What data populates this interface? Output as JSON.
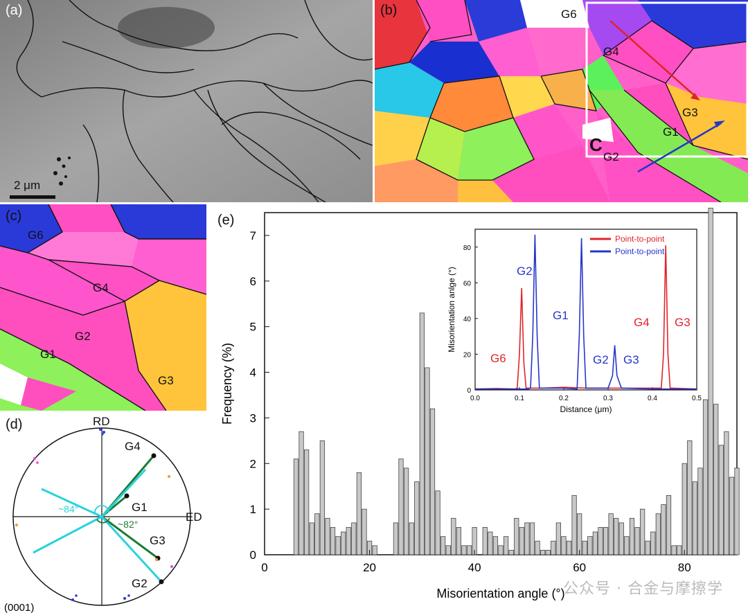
{
  "panels": {
    "a": {
      "label": "(a)",
      "scalebar": "2 μm"
    },
    "b": {
      "label": "(b)",
      "box_label": "C",
      "grains": [
        "G6",
        "G4",
        "G3",
        "G1",
        "G2"
      ]
    },
    "c": {
      "label": "(c)",
      "grains": [
        "G6",
        "G4",
        "G2",
        "G1",
        "G3"
      ]
    },
    "d": {
      "label": "(d)",
      "rd": "RD",
      "ed": "ED",
      "plane": "(0001)",
      "grains": [
        "G4",
        "G1",
        "G3",
        "G2"
      ],
      "angle1": "~84°",
      "angle2": "~82°"
    },
    "e": {
      "label": "(e)"
    }
  },
  "colors": {
    "hist_fill": "#c8c8c8",
    "hist_stroke": "#444444",
    "red_line": "#e0242a",
    "blue_line": "#2736c8",
    "cyan": "#27d3dd",
    "green_dark": "#1f7a34"
  },
  "chart_data": [
    {
      "type": "bar",
      "title": "",
      "xlabel": "Misorientation angle (°)",
      "ylabel": "Frequency (%)",
      "xlim": [
        0,
        90
      ],
      "ylim": [
        0,
        7.5
      ],
      "xticks": [
        0,
        20,
        40,
        60,
        80
      ],
      "yticks": [
        0,
        1,
        2,
        3,
        4,
        5,
        6,
        7
      ],
      "bin_width": 0.85,
      "x": [
        6,
        7,
        8,
        9,
        10,
        11,
        12,
        13,
        14,
        15,
        16,
        17,
        18,
        19,
        20,
        21,
        25,
        26,
        27,
        28,
        29,
        30,
        31,
        32,
        33,
        34,
        35,
        36,
        37,
        38,
        39,
        40,
        42,
        43,
        44,
        45,
        46,
        47,
        48,
        49,
        50,
        51,
        52,
        53,
        54,
        55,
        56,
        57,
        58,
        59,
        60,
        61,
        62,
        63,
        64,
        65,
        66,
        67,
        68,
        69,
        70,
        71,
        72,
        73,
        74,
        75,
        76,
        77,
        78,
        79,
        80,
        81,
        82,
        83,
        84,
        85,
        86,
        87,
        88,
        89,
        90
      ],
      "values": [
        2.1,
        2.7,
        2.3,
        0.7,
        0.9,
        2.5,
        0.8,
        0.6,
        0.4,
        0.5,
        0.6,
        0.7,
        1.8,
        1.0,
        0.3,
        0.2,
        0.7,
        2.1,
        1.9,
        0.7,
        1.6,
        5.3,
        4.1,
        3.2,
        1.4,
        0.4,
        0.2,
        0.8,
        0.6,
        0.2,
        0.2,
        0.6,
        0.6,
        0.5,
        0.4,
        0.2,
        0.4,
        0.1,
        0.8,
        0.6,
        0.7,
        0.7,
        0.3,
        0.1,
        0.1,
        0.3,
        0.7,
        0.4,
        0.3,
        1.3,
        0.9,
        0.3,
        0.4,
        0.5,
        0.6,
        0.6,
        0.9,
        0.8,
        0.7,
        0.4,
        0.8,
        0.6,
        1.0,
        0.3,
        0.5,
        0.9,
        1.1,
        1.3,
        0.2,
        0.2,
        2.0,
        2.5,
        1.6,
        1.9,
        3.4,
        7.6,
        3.3,
        2.4,
        2.7,
        1.7,
        1.9
      ]
    },
    {
      "type": "line",
      "title": "",
      "xlabel": "Distance (μm)",
      "ylabel": "Misorientation anlge (°)",
      "xlim": [
        0,
        0.5
      ],
      "ylim": [
        0,
        90
      ],
      "xticks": [
        0.0,
        0.1,
        0.2,
        0.3,
        0.4,
        0.5
      ],
      "yticks": [
        0,
        20,
        40,
        60,
        80
      ],
      "legend": [
        "Point-to-point",
        "Point-to-point"
      ],
      "series": [
        {
          "name": "Point-to-point",
          "color": "red",
          "x": [
            0.0,
            0.05,
            0.09,
            0.095,
            0.1,
            0.105,
            0.11,
            0.115,
            0.15,
            0.2,
            0.25,
            0.3,
            0.35,
            0.4,
            0.42,
            0.425,
            0.43,
            0.435,
            0.44,
            0.445,
            0.5
          ],
          "values": [
            0.5,
            0.8,
            0.5,
            1,
            20,
            57,
            15,
            1,
            1,
            1.5,
            1,
            1,
            1,
            1,
            1,
            20,
            81,
            20,
            1,
            1,
            0.5
          ]
        },
        {
          "name": "Point-to-point",
          "color": "blue",
          "x": [
            0.0,
            0.05,
            0.12,
            0.125,
            0.13,
            0.135,
            0.14,
            0.145,
            0.2,
            0.23,
            0.235,
            0.24,
            0.245,
            0.25,
            0.3,
            0.31,
            0.315,
            0.32,
            0.33,
            0.4,
            0.5
          ],
          "values": [
            0.5,
            0.5,
            0.5,
            1,
            30,
            87,
            30,
            1,
            1,
            0.5,
            30,
            85,
            30,
            1,
            1,
            8,
            25,
            8,
            1,
            0.5,
            0.5
          ]
        }
      ],
      "annotations": [
        {
          "text": "G2",
          "color": "blue"
        },
        {
          "text": "G6",
          "color": "red"
        },
        {
          "text": "G1",
          "color": "blue"
        },
        {
          "text": "G2",
          "color": "blue"
        },
        {
          "text": "G3",
          "color": "blue"
        },
        {
          "text": "G4",
          "color": "red"
        },
        {
          "text": "G3",
          "color": "red"
        }
      ]
    }
  ],
  "watermark": "公众号 · 合金与摩擦学"
}
